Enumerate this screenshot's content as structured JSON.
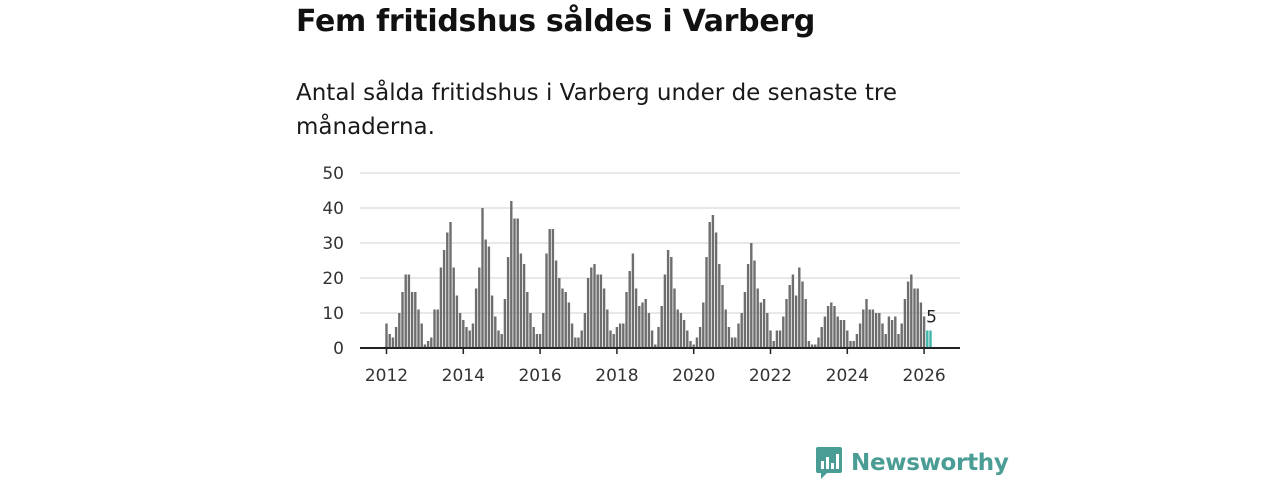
{
  "title": "Fem fritidshus såldes i Varberg",
  "subtitle": "Antal sålda fritidshus i Varberg under de senaste tre månaderna.",
  "brand": {
    "name": "Newsworthy",
    "icon": "newsworthy-logo-icon",
    "color": "#4a9d95"
  },
  "chart_data": {
    "type": "bar",
    "title": "Fem fritidshus såldes i Varberg",
    "xlabel": "",
    "ylabel": "",
    "ylim": [
      0,
      50
    ],
    "yticks": [
      "0",
      "10",
      "20",
      "30",
      "40",
      "50"
    ],
    "xticks": [
      "2012",
      "2014",
      "2016",
      "2018",
      "2020",
      "2022",
      "2024",
      "2026"
    ],
    "start": "2012-01",
    "bar_color": "#6e6e6e",
    "highlight_color": "#3fb5a8",
    "highlight_label": "5",
    "highlight_count": 2,
    "values": [
      7,
      4,
      3,
      6,
      10,
      16,
      21,
      21,
      16,
      16,
      11,
      7,
      1,
      2,
      3,
      11,
      11,
      23,
      28,
      33,
      36,
      23,
      15,
      10,
      8,
      6,
      5,
      7,
      17,
      23,
      40,
      31,
      29,
      15,
      9,
      5,
      4,
      14,
      26,
      42,
      37,
      37,
      27,
      24,
      16,
      10,
      6,
      4,
      4,
      10,
      27,
      34,
      34,
      25,
      20,
      17,
      16,
      13,
      7,
      3,
      3,
      5,
      10,
      20,
      23,
      24,
      21,
      21,
      17,
      11,
      5,
      4,
      6,
      7,
      7,
      16,
      22,
      27,
      17,
      12,
      13,
      14,
      10,
      5,
      1,
      6,
      12,
      21,
      28,
      26,
      17,
      11,
      10,
      8,
      5,
      2,
      1,
      3,
      6,
      13,
      26,
      36,
      38,
      33,
      24,
      18,
      11,
      6,
      3,
      3,
      7,
      10,
      16,
      24,
      30,
      25,
      17,
      13,
      14,
      10,
      5,
      2,
      5,
      5,
      9,
      14,
      18,
      21,
      15,
      23,
      19,
      14,
      2,
      1,
      1,
      3,
      6,
      9,
      12,
      13,
      12,
      9,
      8,
      8,
      5,
      2,
      2,
      4,
      7,
      11,
      14,
      11,
      11,
      10,
      10,
      7,
      4,
      9,
      8,
      9,
      4,
      7,
      14,
      19,
      21,
      17,
      17,
      13,
      9,
      5,
      5
    ]
  }
}
